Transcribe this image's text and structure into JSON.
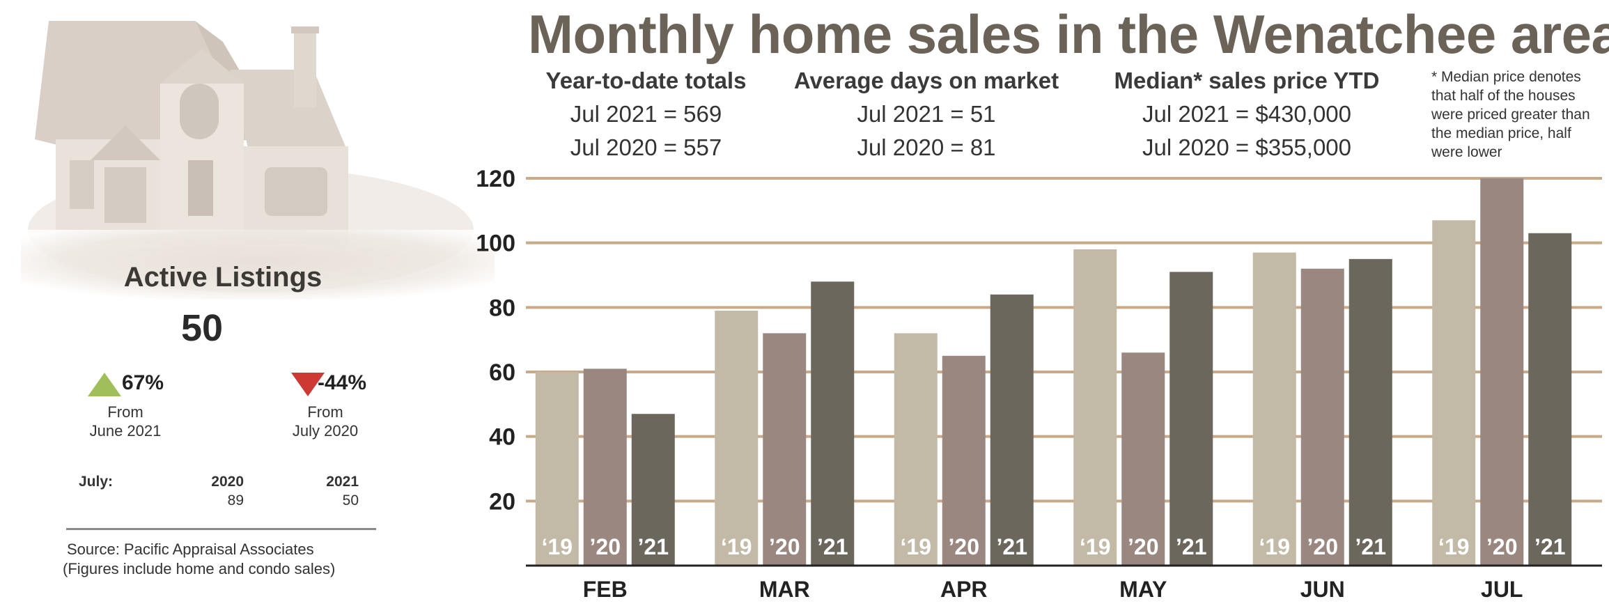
{
  "title": "Monthly home sales in the Wenatchee area",
  "stats": [
    {
      "heading": "Year-to-date totals",
      "line1": "Jul 2021 = 569",
      "line2": "Jul 2020 = 557"
    },
    {
      "heading": "Average days on market",
      "line1": "Jul 2021 = 51",
      "line2": "Jul 2020 = 81"
    },
    {
      "heading": "Median* sales price YTD",
      "line1": "Jul 2021 = $430,000",
      "line2": "Jul 2020 = $355,000"
    }
  ],
  "footnote": "* Median price denotes that half of the houses were priced greater than the median price, half were lower",
  "active_listings": {
    "title": "Active Listings",
    "value": "50",
    "change_month": {
      "value": "67%",
      "label_line1": "From",
      "label_line2": "June 2021",
      "direction": "up",
      "color": "#a0bf5a"
    },
    "change_year": {
      "value": "-44%",
      "label_line1": "From",
      "label_line2": "July 2020",
      "direction": "down",
      "color": "#cc3a33"
    },
    "table": {
      "row_label": "July:",
      "col1_header": "2020",
      "col1_value": "89",
      "col2_header": "2021",
      "col2_value": "50"
    }
  },
  "source_line1": "Source: Pacific Appraisal Associates",
  "source_line2": "(Figures include home and condo sales)",
  "chart_data": {
    "type": "bar",
    "categories": [
      "FEB",
      "MAR",
      "APR",
      "MAY",
      "JUN",
      "JUL"
    ],
    "series": [
      {
        "name": "‘19",
        "color": "#c2b9a7",
        "values": [
          60,
          79,
          72,
          98,
          97,
          107
        ]
      },
      {
        "name": "’20",
        "color": "#9a8880",
        "values": [
          61,
          72,
          65,
          66,
          92,
          120
        ]
      },
      {
        "name": "’21",
        "color": "#6b675c",
        "values": [
          47,
          88,
          84,
          91,
          95,
          103
        ]
      }
    ],
    "yticks": [
      20,
      40,
      60,
      80,
      100,
      120
    ],
    "ylim": [
      0,
      120
    ],
    "grid": true,
    "grid_color": "#c9a987"
  }
}
